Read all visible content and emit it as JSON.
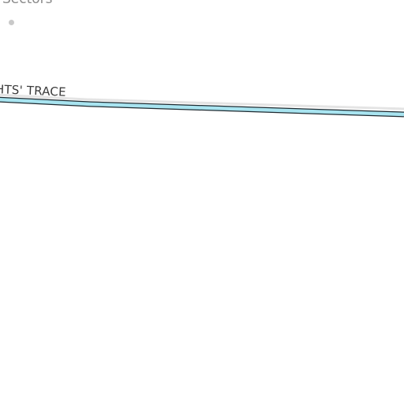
{
  "map": {
    "place": {
      "name": "Sectors",
      "dot_color": "#c9c9c9"
    },
    "road": {
      "label": "HTS' TRACE",
      "fill_color": "#a8e4f0",
      "casing_color": "#1f2a30",
      "shadow_color": "#e4e4e4"
    },
    "background_color": "#ffffff"
  }
}
